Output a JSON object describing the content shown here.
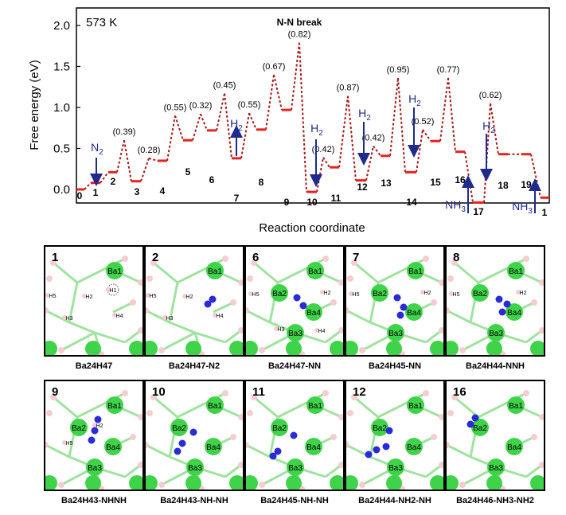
{
  "chart_data": {
    "type": "line",
    "title": "N-N break",
    "temperature_label": "573 K",
    "xlabel": "Reaction coordinate",
    "ylabel": "Free energy (eV)",
    "ylim": [
      -0.2,
      2.2
    ],
    "yticks": [
      "0.0",
      "0.5",
      "1.0",
      "1.5",
      "2.0"
    ],
    "states": [
      {
        "label": "0",
        "energy": 0.0
      },
      {
        "label": "1",
        "energy": 0.08
      },
      {
        "label": "2",
        "energy": 0.21
      },
      {
        "label": "3",
        "energy": 0.1
      },
      {
        "label": "4",
        "energy": 0.35
      },
      {
        "label": "5",
        "energy": 0.6
      },
      {
        "label": "6",
        "energy": 0.72
      },
      {
        "label": "7",
        "energy": 0.38
      },
      {
        "label": "8",
        "energy": 0.73
      },
      {
        "label": "9",
        "energy": 0.97
      },
      {
        "label": "10",
        "energy": -0.03
      },
      {
        "label": "11",
        "energy": 0.27
      },
      {
        "label": "12",
        "energy": 0.11
      },
      {
        "label": "13",
        "energy": 0.41
      },
      {
        "label": "14",
        "energy": 0.21
      },
      {
        "label": "15",
        "energy": 0.59
      },
      {
        "label": "16",
        "energy": 0.46
      },
      {
        "label": "17",
        "energy": -0.16
      },
      {
        "label": "18",
        "energy": 0.43
      },
      {
        "label": "19",
        "energy": 0.43
      },
      {
        "label": "1",
        "energy": -0.1
      }
    ],
    "barriers": [
      {
        "label": "(0.39)",
        "energy": 0.6
      },
      {
        "label": "(0.28)",
        "energy": 0.38
      },
      {
        "label": "(0.55)",
        "energy": 0.9
      },
      {
        "label": "(0.32)",
        "energy": 0.92
      },
      {
        "label": "(0.45)",
        "energy": 1.17
      },
      {
        "label": "(0.55)",
        "energy": 0.93
      },
      {
        "label": "(0.67)",
        "energy": 1.4
      },
      {
        "label": "(0.82)",
        "energy": 1.79
      },
      {
        "label": "(0.42)",
        "energy": 0.39
      },
      {
        "label": "(0.87)",
        "energy": 1.14
      },
      {
        "label": "(0.42)",
        "energy": 0.53
      },
      {
        "label": "(0.95)",
        "energy": 1.36
      },
      {
        "label": "(0.52)",
        "energy": 0.73
      },
      {
        "label": "(0.77)",
        "energy": 1.36
      },
      {
        "label": "(0.62)",
        "energy": 1.05
      }
    ],
    "arrows": [
      {
        "label": "N2",
        "direction": "down"
      },
      {
        "label": "H2",
        "direction": "up"
      },
      {
        "label": "H2",
        "direction": "down"
      },
      {
        "label": "H2",
        "direction": "down"
      },
      {
        "label": "H2",
        "direction": "down"
      },
      {
        "label": "H2",
        "direction": "down"
      },
      {
        "label": "NH3",
        "direction": "up"
      },
      {
        "label": "NH3",
        "direction": "up"
      }
    ],
    "colors": {
      "level": "#e8231c",
      "path": "#a51d1d",
      "arrow": "#1f2a8c"
    }
  },
  "panels": [
    {
      "num": "1",
      "caption": "Ba24H47",
      "atoms": [
        "Ba1",
        "H5",
        "H2",
        "H1",
        "H3",
        "H4"
      ]
    },
    {
      "num": "2",
      "caption": "Ba24H47-N2",
      "atoms": [
        "Ba1",
        "H5",
        "H2",
        "H3",
        "H4"
      ]
    },
    {
      "num": "6",
      "caption": "Ba24H47-NN",
      "atoms": [
        "Ba1",
        "Ba2",
        "H5",
        "H2",
        "Ba4",
        "H3",
        "Ba3",
        "H4"
      ]
    },
    {
      "num": "7",
      "caption": "Ba24H45-NN",
      "atoms": [
        "Ba1",
        "Ba2",
        "H5",
        "H2",
        "Ba4",
        "Ba3"
      ]
    },
    {
      "num": "8",
      "caption": "Ba24H44-NNH",
      "atoms": [
        "Ba1",
        "Ba2",
        "H5",
        "H2",
        "Ba4",
        "Ba3"
      ]
    },
    {
      "num": "9",
      "caption": "Ba24H43-NHNH",
      "atoms": [
        "Ba1",
        "Ba2",
        "H2",
        "H5",
        "Ba4",
        "Ba3"
      ]
    },
    {
      "num": "10",
      "caption": "Ba24H43-NH-NH",
      "atoms": [
        "Ba1",
        "Ba2",
        "Ba4",
        "Ba3"
      ]
    },
    {
      "num": "11",
      "caption": "Ba24H45-NH-NH",
      "atoms": [
        "Ba1",
        "Ba2",
        "Ba4",
        "Ba3"
      ]
    },
    {
      "num": "12",
      "caption": "Ba24H44-NH2-NH",
      "atoms": [
        "Ba1",
        "Ba2",
        "Ba4",
        "Ba3"
      ]
    },
    {
      "num": "16",
      "caption": "Ba24H46-NH3-NH2",
      "atoms": [
        "Ba1",
        "Ba2",
        "Ba4",
        "Ba3"
      ]
    }
  ]
}
